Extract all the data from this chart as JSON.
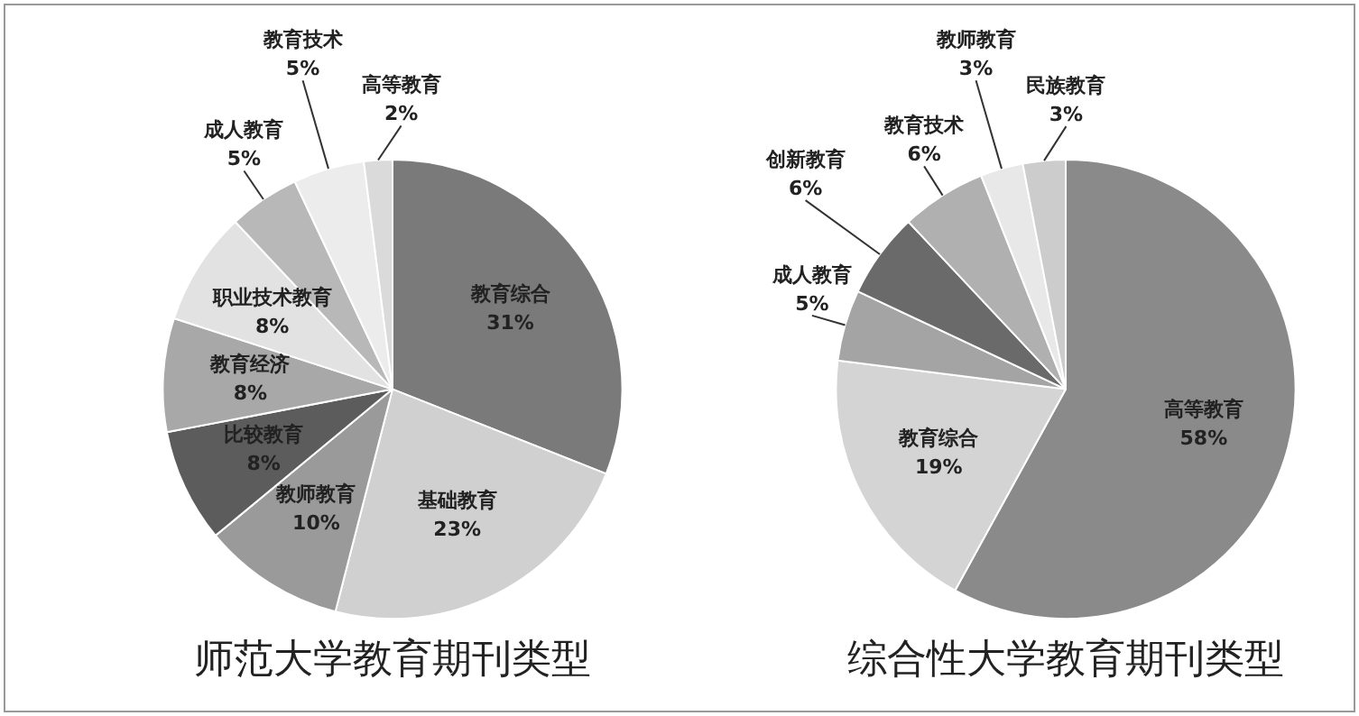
{
  "chart_data": [
    {
      "type": "pie",
      "title": "师范大学教育期刊类型",
      "categories": [
        "教育综合",
        "基础教育",
        "教师教育",
        "比较教育",
        "教育经济",
        "职业技术教育",
        "成人教育",
        "教育技术",
        "高等教育"
      ],
      "values": [
        31,
        23,
        10,
        8,
        8,
        8,
        5,
        5,
        2
      ],
      "value_labels": [
        "31%",
        "23%",
        "10%",
        "8%",
        "8%",
        "8%",
        "5%",
        "5%",
        "2%"
      ],
      "colors": [
        "#7a7a7a",
        "#d0d0d0",
        "#9a9a9a",
        "#5c5c5c",
        "#a8a8a8",
        "#e2e2e2",
        "#b8b8b8",
        "#ececec",
        "#dadada"
      ]
    },
    {
      "type": "pie",
      "title": "综合性大学教育期刊类型",
      "categories": [
        "高等教育",
        "教育综合",
        "成人教育",
        "创新教育",
        "教育技术",
        "教师教育",
        "民族教育"
      ],
      "values": [
        58,
        19,
        5,
        6,
        6,
        3,
        3
      ],
      "value_labels": [
        "58%",
        "19%",
        "5%",
        "6%",
        "6%",
        "3%",
        "3%"
      ],
      "colors": [
        "#8a8a8a",
        "#d4d4d4",
        "#a4a4a4",
        "#6a6a6a",
        "#b0b0b0",
        "#e8e8e8",
        "#cccccc"
      ]
    }
  ]
}
